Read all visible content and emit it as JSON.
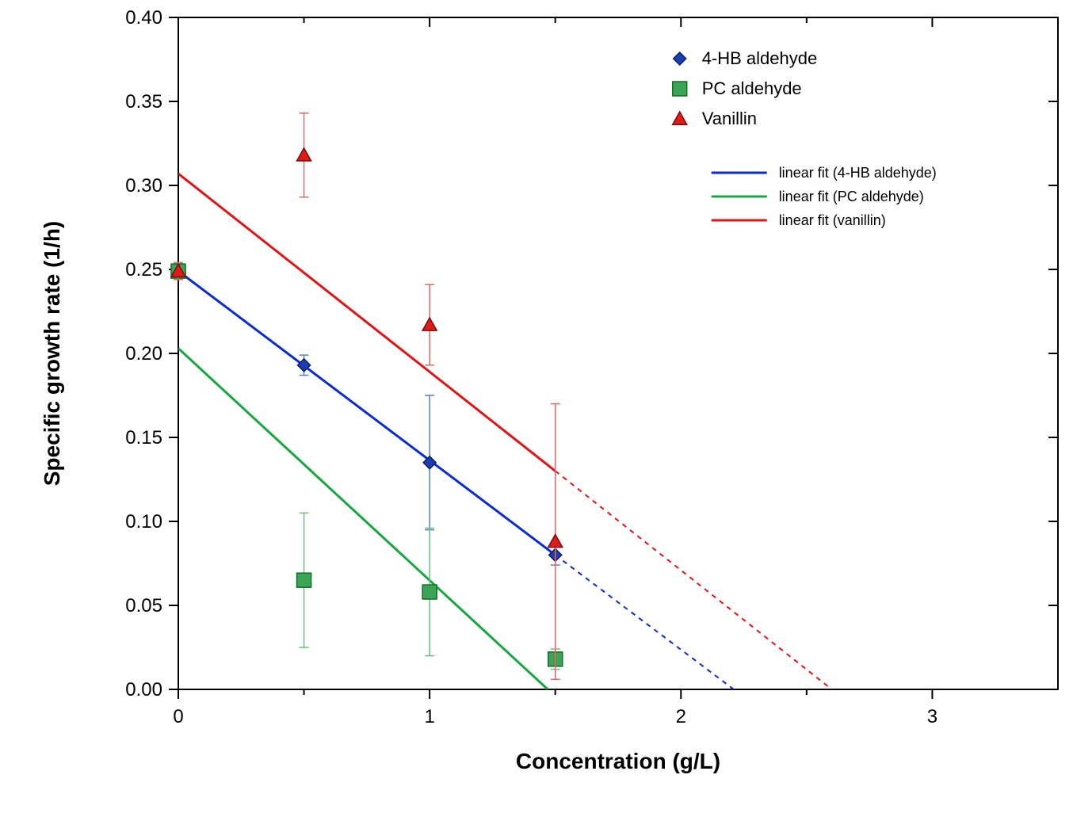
{
  "chart": {
    "type": "scatter+line",
    "background_color": "#ffffff",
    "plot_border_color": "#000000",
    "axis_line_width": 2,
    "xlabel": "Concentration (g/L)",
    "ylabel": "Specific growth rate (1/h)",
    "label_fontsize_pt": 21,
    "label_fontweight": "bold",
    "tick_fontsize_pt": 18,
    "xlim": [
      0.0,
      3.5
    ],
    "ylim": [
      0.0,
      0.4
    ],
    "xticks": [
      0,
      1,
      2,
      3
    ],
    "yticks": [
      0.0,
      0.05,
      0.1,
      0.15,
      0.2,
      0.25,
      0.3,
      0.35,
      0.4
    ],
    "xtick_labels": [
      "0",
      "1",
      "2",
      "3"
    ],
    "ytick_labels": [
      "0.00",
      "0.05",
      "0.10",
      "0.15",
      "0.20",
      "0.25",
      "0.30",
      "0.35",
      "0.40"
    ],
    "grid": false,
    "series": [
      {
        "name": "4-HB aldehyde",
        "marker": "diamond",
        "marker_fill": "#1a3db0",
        "marker_stroke": "#0b1f63",
        "marker_size": 16,
        "error_bar_color": "#5c7bd6",
        "error_bar_width": 1.5,
        "points": [
          {
            "x": 0.0,
            "y": 0.249,
            "err": 0.005
          },
          {
            "x": 0.5,
            "y": 0.193,
            "err": 0.006
          },
          {
            "x": 1.0,
            "y": 0.135,
            "err": 0.04
          },
          {
            "x": 1.5,
            "y": 0.08,
            "err": 0.006
          }
        ]
      },
      {
        "name": "PC aldehyde",
        "marker": "square",
        "marker_fill": "#3aa655",
        "marker_stroke": "#156b2a",
        "marker_size": 18,
        "error_bar_color": "#6bbf86",
        "error_bar_width": 1.5,
        "points": [
          {
            "x": 0.0,
            "y": 0.249,
            "err": 0.005
          },
          {
            "x": 0.5,
            "y": 0.065,
            "err": 0.04
          },
          {
            "x": 1.0,
            "y": 0.058,
            "err": 0.038
          },
          {
            "x": 1.5,
            "y": 0.018,
            "err": 0.006
          }
        ]
      },
      {
        "name": "Vanillin",
        "marker": "triangle",
        "marker_fill": "#e01b1b",
        "marker_stroke": "#7a0c0c",
        "marker_size": 18,
        "error_bar_color": "#d96b6b",
        "error_bar_width": 1.5,
        "points": [
          {
            "x": 0.0,
            "y": 0.249,
            "err": 0.005
          },
          {
            "x": 0.5,
            "y": 0.318,
            "err": 0.025
          },
          {
            "x": 1.0,
            "y": 0.217,
            "err": 0.024
          },
          {
            "x": 1.5,
            "y": 0.088,
            "err": 0.082
          }
        ]
      }
    ],
    "fit_lines": [
      {
        "name": "linear fit (4-HB aldehyde)",
        "color": "#0a2bd4",
        "width": 3,
        "solid_segment": {
          "x0": 0.0,
          "y0": 0.249,
          "x1": 1.5,
          "y1": 0.08
        },
        "dashed_segment": {
          "x0": 1.5,
          "y0": 0.08,
          "x1": 2.21,
          "y1": 0.0
        },
        "dash_pattern": "6,6"
      },
      {
        "name": "linear fit (PC aldehyde)",
        "color": "#18a641",
        "width": 3,
        "solid_segment": {
          "x0": 0.0,
          "y0": 0.203,
          "x1": 1.47,
          "y1": 0.0
        },
        "dashed_segment": null,
        "dash_pattern": "6,6"
      },
      {
        "name": "linear fit (vanillin)",
        "color": "#e01414",
        "width": 3,
        "solid_segment": {
          "x0": 0.0,
          "y0": 0.307,
          "x1": 1.5,
          "y1": 0.13
        },
        "dashed_segment": {
          "x0": 1.5,
          "y0": 0.13,
          "x1": 2.6,
          "y1": 0.0
        },
        "dash_pattern": "6,6"
      }
    ],
    "legend": {
      "position": "top-right",
      "marker_items": [
        {
          "label": "4-HB aldehyde",
          "series_index": 0
        },
        {
          "label": "PC aldehyde",
          "series_index": 1
        },
        {
          "label": "Vanillin",
          "series_index": 2
        }
      ],
      "line_items": [
        {
          "label": "linear fit (4-HB aldehyde)",
          "fit_index": 0
        },
        {
          "label": "linear fit (PC aldehyde)",
          "fit_index": 1
        },
        {
          "label": "linear fit (vanillin)",
          "fit_index": 2
        }
      ],
      "marker_fontsize_pt": 16,
      "line_fontsize_pt": 13
    }
  }
}
